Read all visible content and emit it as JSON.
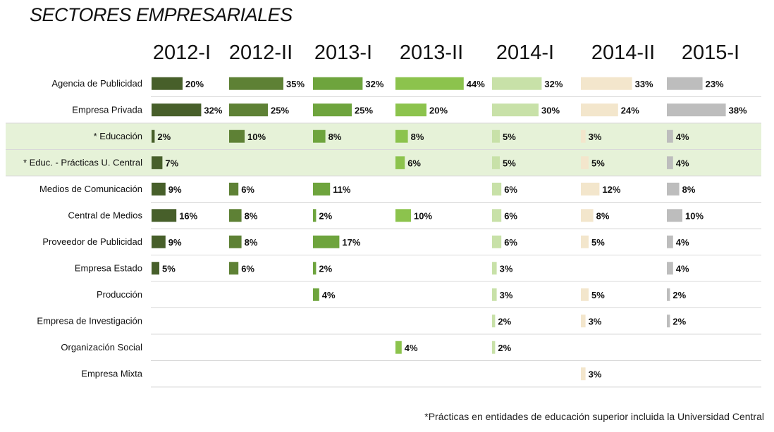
{
  "title": "SECTORES EMPRESARIALES",
  "footnote": "*Prácticas en entidades de educación superior incluida la Universidad Central",
  "chart_data": {
    "type": "bar",
    "title": "SECTORES EMPRESARIALES",
    "periods": [
      "2012-I",
      "2012-II",
      "2013-I",
      "2013-II",
      "2014-I",
      "2014-II",
      "2015-I"
    ],
    "categories": [
      "Agencia de Publicidad",
      "Empresa Privada",
      "* Educación",
      "* Educ. - Prácticas U. Central",
      "Medios de Comunicación",
      "Central de Medios",
      "Proveedor de Publicidad",
      "Empresa Estado",
      "Producción",
      "Empresa de Investigación",
      "Organización Social",
      "Empresa Mixta"
    ],
    "highlighted_categories": [
      "* Educación",
      "* Educ. - Prácticas U. Central"
    ],
    "series": [
      {
        "name": "2012-I",
        "color": "#475f2a",
        "values": [
          20,
          32,
          2,
          7,
          9,
          16,
          9,
          5,
          null,
          null,
          null,
          null
        ]
      },
      {
        "name": "2012-II",
        "color": "#5e8135",
        "values": [
          35,
          25,
          10,
          null,
          6,
          8,
          8,
          6,
          null,
          null,
          null,
          null
        ]
      },
      {
        "name": "2013-I",
        "color": "#6ea43d",
        "values": [
          32,
          25,
          8,
          null,
          11,
          2,
          17,
          2,
          4,
          null,
          null,
          null
        ]
      },
      {
        "name": "2013-II",
        "color": "#8cc34d",
        "values": [
          44,
          20,
          8,
          6,
          null,
          10,
          null,
          null,
          null,
          null,
          4,
          null
        ]
      },
      {
        "name": "2014-I",
        "color": "#c8e1a8",
        "values": [
          32,
          30,
          5,
          5,
          6,
          6,
          6,
          3,
          3,
          2,
          2,
          null
        ]
      },
      {
        "name": "2014-II",
        "color": "#f3e6cc",
        "values": [
          33,
          24,
          3,
          5,
          12,
          8,
          5,
          null,
          5,
          3,
          null,
          3
        ]
      },
      {
        "name": "2015-I",
        "color": "#bdbdbd",
        "values": [
          23,
          38,
          4,
          4,
          8,
          10,
          4,
          4,
          2,
          2,
          null,
          null
        ]
      }
    ],
    "value_suffix": "%",
    "highlight_color": "#e6f2d8"
  }
}
